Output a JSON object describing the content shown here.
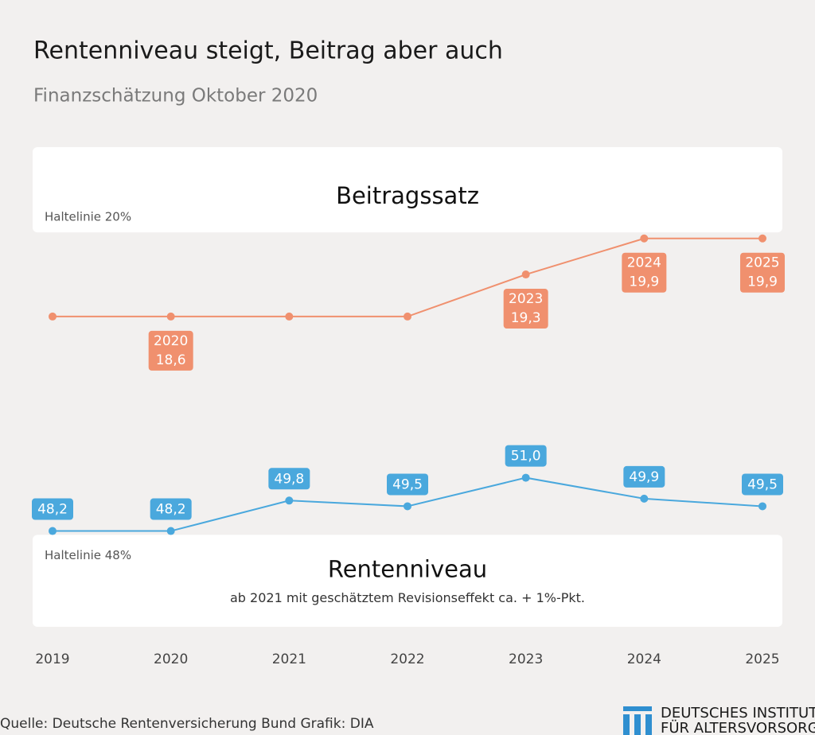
{
  "chart_data": {
    "type": "line",
    "title": "Rentenniveau steigt, Beitrag aber auch",
    "subtitle": "Finanzschätzung Oktober 2020",
    "categories": [
      "2019",
      "2020",
      "2021",
      "2022",
      "2023",
      "2024",
      "2025"
    ],
    "series": [
      {
        "name": "Beitragssatz",
        "color": "#f0906e",
        "axis": "y2",
        "values": [
          18.6,
          18.6,
          18.6,
          18.6,
          19.3,
          19.9,
          19.9
        ],
        "value_labels": [
          null,
          "18,6",
          null,
          null,
          "19,3",
          "19,9",
          "19,9"
        ]
      },
      {
        "name": "Rentenniveau",
        "color": "#4aa8dd",
        "note": "ab 2021 mit geschätztem Revisionseffekt ca. + 1%-Pkt.",
        "values": [
          48.2,
          48.2,
          49.8,
          49.5,
          51.0,
          49.9,
          49.5
        ],
        "value_labels": [
          "48,2",
          "48,2",
          "49,8",
          "49,5",
          "51,0",
          "49,9",
          "49,5"
        ]
      }
    ],
    "reference_lines": [
      {
        "label": "Haltelinie 20%",
        "value": 20,
        "axis": "y2"
      },
      {
        "label": "Haltelinie 48%",
        "value": 48
      }
    ],
    "ylim": [
      44,
      68
    ],
    "y2lim": [
      13.7,
      21.3
    ],
    "source": "Quelle: Deutsche Rentenversicherung Bund  Grafik: DIA",
    "logo": [
      "DEUTSCHES INSTITUT",
      "FÜR ALTERSVORSORGE"
    ]
  }
}
